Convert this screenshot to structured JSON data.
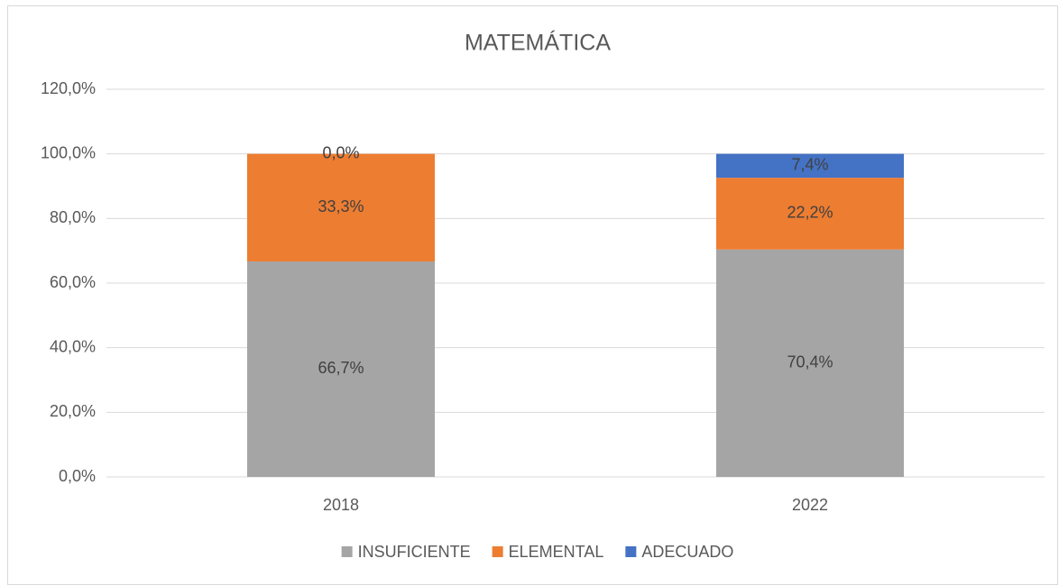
{
  "chart_data": {
    "type": "stacked_bar",
    "title": "MATEMÁTICA",
    "categories": [
      "2018",
      "2022"
    ],
    "series": [
      {
        "name": "INSUFICIENTE",
        "color": "#a5a5a5",
        "values": [
          66.7,
          70.4
        ],
        "value_labels": [
          "66,7%",
          "70,4%"
        ]
      },
      {
        "name": "ELEMENTAL",
        "color": "#ed7d31",
        "values": [
          33.3,
          22.2
        ],
        "value_labels": [
          "33,3%",
          "22,2%"
        ]
      },
      {
        "name": "ADECUADO",
        "color": "#4472c4",
        "values": [
          0,
          7.4
        ],
        "value_labels": [
          "0,0%",
          "7,4%"
        ]
      }
    ],
    "ylim": [
      0,
      120
    ],
    "yticks": [
      {
        "value": 0,
        "label": "0,0%"
      },
      {
        "value": 20,
        "label": "20,0%"
      },
      {
        "value": 40,
        "label": "40,0%"
      },
      {
        "value": 60,
        "label": "60,0%"
      },
      {
        "value": 80,
        "label": "80,0%"
      },
      {
        "value": 100,
        "label": "100,0%"
      },
      {
        "value": 120,
        "label": "120,0%"
      }
    ],
    "grid": true,
    "legend": "bottom"
  }
}
